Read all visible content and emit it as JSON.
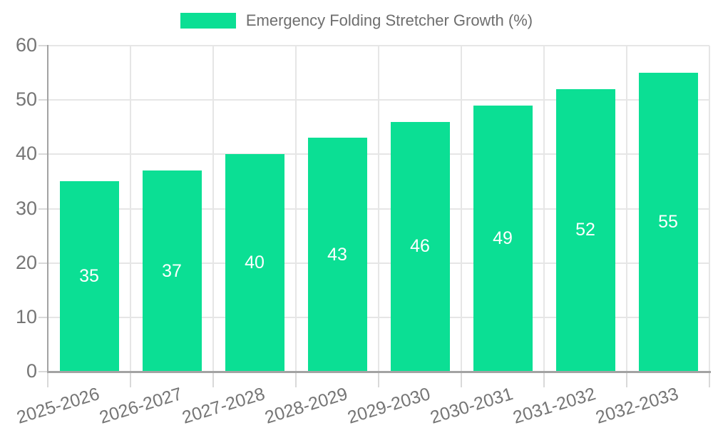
{
  "legend": {
    "position": "top-center",
    "items": [
      {
        "label": "Emergency Folding Stretcher Growth (%)",
        "swatch_color": "#0bdf94"
      }
    ]
  },
  "colors": {
    "bar": "#0bdf94",
    "legend_text": "#6e6e6e",
    "tick_text": "#757575",
    "gridline": "#e6e6e6",
    "tick_mark": "#d9d9d9",
    "axis_line": "#a3a3a3",
    "value_label": "#ffffff",
    "background": "#ffffff"
  },
  "chart_data": {
    "type": "bar",
    "title": "Emergency Folding Stretcher Growth (%)",
    "categories": [
      "2025-2026",
      "2026-2027",
      "2027-2028",
      "2028-2029",
      "2029-2030",
      "2030-2031",
      "2031-2032",
      "2032-2033"
    ],
    "values": [
      35,
      37,
      40,
      43,
      46,
      49,
      52,
      55
    ],
    "value_labels_position": "inside-center",
    "xlabel": "",
    "ylabel": "",
    "ylim": [
      0,
      60
    ],
    "yticks": [
      0,
      10,
      20,
      30,
      40,
      50,
      60
    ],
    "grid": "both",
    "legend_position": "top",
    "x_tick_rotation_deg": -17
  }
}
